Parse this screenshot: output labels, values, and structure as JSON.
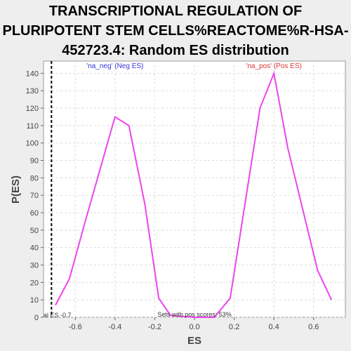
{
  "title_lines": [
    "TRANSCRIPTIONAL REGULATION OF",
    "PLURIPOTENT STEM CELLS%REACTOME%R-HSA-",
    "452723.4: Random ES distribution"
  ],
  "chart_data": {
    "type": "line",
    "title": "TRANSCRIPTIONAL REGULATION OF PLURIPOTENT STEM CELLS%REACTOME%R-HSA-452723.4: Random ES distribution",
    "xlabel": "ES",
    "ylabel": "P(ES)",
    "xlim": [
      -0.76,
      0.76
    ],
    "ylim": [
      0,
      147
    ],
    "x_ticks": [
      -0.6,
      -0.4,
      -0.2,
      0.0,
      0.2,
      0.4,
      0.6
    ],
    "x_tick_labels": [
      "-0.6",
      "-0.4",
      "-0.2",
      "0.0",
      "0.2",
      "0.4",
      "0.6"
    ],
    "y_ticks": [
      0,
      10,
      20,
      30,
      40,
      50,
      60,
      70,
      80,
      90,
      100,
      110,
      120,
      130,
      140
    ],
    "y_tick_labels": [
      "0",
      "10",
      "20",
      "30",
      "40",
      "50",
      "60",
      "70",
      "80",
      "90",
      "100",
      "110",
      "120",
      "130",
      "140"
    ],
    "grid": true,
    "series": [
      {
        "color": "#ee44ee",
        "points": [
          [
            -0.7,
            7
          ],
          [
            -0.63,
            22
          ],
          [
            -0.55,
            55
          ],
          [
            -0.4,
            115
          ],
          [
            -0.33,
            110
          ],
          [
            -0.25,
            65
          ],
          [
            -0.18,
            11
          ],
          [
            -0.12,
            1
          ],
          [
            0.0,
            0
          ],
          [
            0.1,
            0
          ],
          [
            0.18,
            11
          ],
          [
            0.33,
            120
          ],
          [
            0.4,
            140
          ],
          [
            0.47,
            97
          ],
          [
            0.62,
            27
          ],
          [
            0.69,
            10
          ]
        ]
      }
    ],
    "vline": {
      "x": -0.72,
      "style": "dashed",
      "color": "#000000"
    },
    "annotations": {
      "neg": {
        "text": "'na_neg' (Neg ES)",
        "color": "#3333dd",
        "x": -0.4,
        "y": 143
      },
      "pos": {
        "text": "'na_pos' (Pos ES)",
        "color": "#dd3333",
        "x": 0.4,
        "y": 143
      },
      "actual": {
        "text": "al ES -0.7",
        "color": "#333333"
      },
      "pct": {
        "text": "Sets with pos scores: 53%",
        "color": "#333333"
      }
    }
  }
}
